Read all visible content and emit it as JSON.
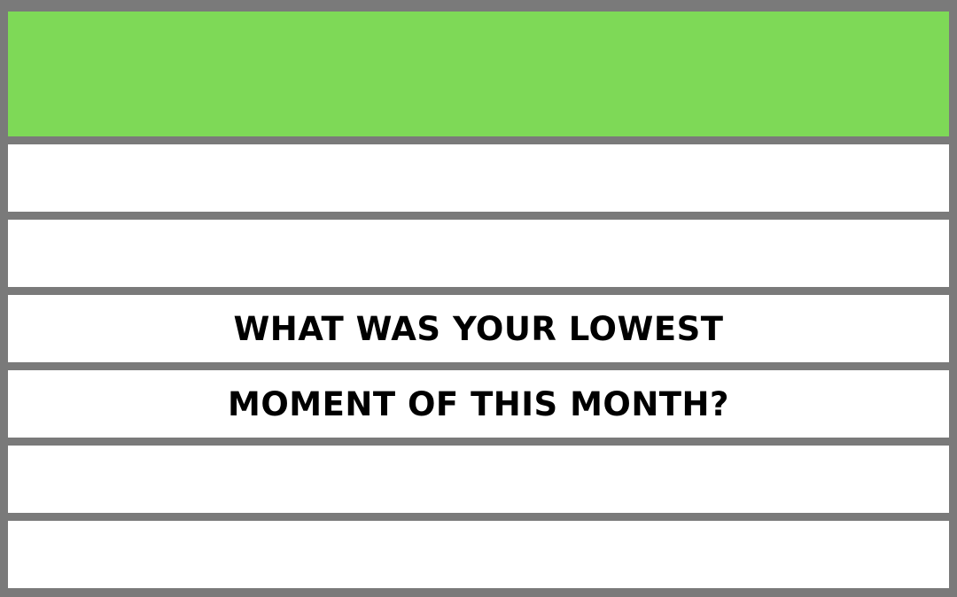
{
  "header": {
    "color": "#7ed957"
  },
  "question": {
    "line1": "WHAT WAS YOUR LOWEST",
    "line2": "MOMENT OF THIS MONTH?"
  },
  "colors": {
    "frame": "#7a7a7a",
    "row_background": "#ffffff",
    "text": "#000000"
  }
}
